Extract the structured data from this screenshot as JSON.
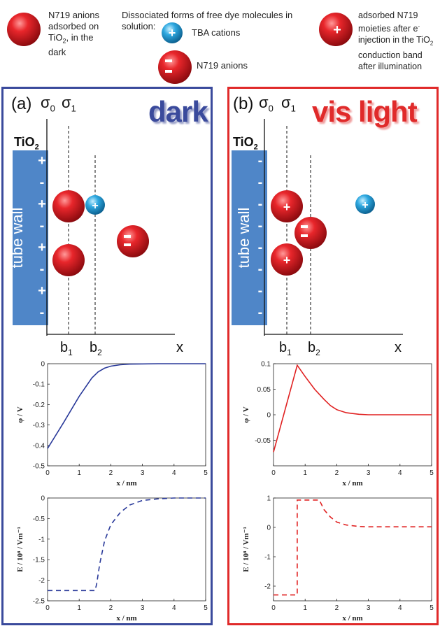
{
  "legend": {
    "adsorbed_dark": [
      "N719 anions",
      "adsorbed on",
      "TiO",
      "2",
      ", in the",
      "dark"
    ],
    "dissociated_title": [
      "Dissociated forms of free dye molecules in",
      "solution:"
    ],
    "tba_label": "TBA cations",
    "n719_label": "N719 anions",
    "adsorbed_light": [
      "adsorbed N719",
      "moieties after e",
      "-",
      "injection in the TiO",
      "2",
      "conduction band",
      "after illumination"
    ]
  },
  "panel_a": {
    "letter": "(a)",
    "title": "dark",
    "title_color": "#3a4a9c",
    "sigma0": "σ",
    "sigma0_sub": "0",
    "sigma1": "σ",
    "sigma1_sub": "1",
    "tio2": "TiO",
    "tio2_sub": "2",
    "wall_text": "tube wall",
    "wall_charges": [
      "+",
      "-",
      "+",
      "-",
      "+",
      "-",
      "+",
      "-"
    ],
    "b1": "b",
    "b1_sub": "1",
    "b2": "b",
    "b2_sub": "2",
    "x_label": "x"
  },
  "panel_b": {
    "letter": "(b)",
    "title": "vis light",
    "title_color": "#e02a2a",
    "sigma0": "σ",
    "sigma0_sub": "0",
    "sigma1": "σ",
    "sigma1_sub": "1",
    "tio2": "TiO",
    "tio2_sub": "2",
    "wall_text": "tube wall",
    "wall_charges": [
      "-",
      "-",
      "-",
      "-",
      "-",
      "-",
      "-",
      "-"
    ],
    "b1": "b",
    "b1_sub": "1",
    "b2": "b",
    "b2_sub": "2",
    "x_label": "x"
  },
  "colors": {
    "wall": "#4f86c8",
    "anion": "#d9141a",
    "cation": "#29a6de"
  },
  "chart_data": [
    {
      "type": "line",
      "id": "phi-dark",
      "xlabel": "x / nm",
      "ylabel": "φ / V",
      "xlim": [
        0,
        5
      ],
      "ylim": [
        -0.5,
        0
      ],
      "xticks": [
        0,
        1,
        2,
        3,
        4,
        5
      ],
      "yticks": [
        0,
        -0.1,
        -0.2,
        -0.3,
        -0.4,
        -0.5
      ],
      "ytick_labels": [
        "0",
        "-0.1",
        "-0.2",
        "-0.3",
        "-0.4",
        "-0.5"
      ],
      "series": [
        {
          "color": "#2a3a9a",
          "dash": false,
          "x": [
            0,
            0.5,
            1.0,
            1.4,
            1.6,
            1.8,
            2.0,
            2.3,
            2.6,
            3.0,
            3.5,
            4.0,
            5.0
          ],
          "values": [
            -0.415,
            -0.29,
            -0.16,
            -0.07,
            -0.04,
            -0.022,
            -0.012,
            -0.005,
            -0.002,
            -0.001,
            0,
            0,
            0
          ]
        }
      ]
    },
    {
      "type": "line",
      "id": "phi-light",
      "xlabel": "x / nm",
      "ylabel": "φ / V",
      "xlim": [
        0,
        5
      ],
      "ylim": [
        -0.1,
        0.1
      ],
      "xticks": [
        0,
        1,
        2,
        3,
        4,
        5
      ],
      "yticks": [
        0.1,
        0.05,
        0,
        -0.05
      ],
      "ytick_labels": [
        "0.1",
        "0.05",
        "0",
        "-0.05"
      ],
      "series": [
        {
          "color": "#e02020",
          "dash": false,
          "x": [
            0,
            0.75,
            1.0,
            1.3,
            1.6,
            1.8,
            2.0,
            2.3,
            2.7,
            3.0,
            4.0,
            5.0
          ],
          "values": [
            -0.073,
            0.097,
            0.075,
            0.05,
            0.03,
            0.018,
            0.01,
            0.004,
            0.001,
            0,
            0,
            0
          ]
        }
      ]
    },
    {
      "type": "line",
      "id": "e-dark",
      "xlabel": "x / nm",
      "ylabel": "E / 10⁸ / Vm⁻¹",
      "xlim": [
        0,
        5
      ],
      "ylim": [
        -2.5,
        0
      ],
      "xticks": [
        0,
        1,
        2,
        3,
        4,
        5
      ],
      "yticks": [
        0,
        -0.5,
        -1,
        -1.5,
        -2,
        -2.5
      ],
      "ytick_labels": [
        "0",
        "-0.5",
        "-1",
        "-1.5",
        "-2",
        "-2.5"
      ],
      "series": [
        {
          "color": "#2a3a9a",
          "dash": true,
          "x": [
            0,
            1.5,
            1.55,
            1.65,
            1.8,
            2.0,
            2.3,
            2.6,
            3.0,
            3.5,
            4.0,
            5.0
          ],
          "values": [
            -2.25,
            -2.25,
            -2.1,
            -1.6,
            -1.05,
            -0.65,
            -0.35,
            -0.17,
            -0.06,
            -0.02,
            0,
            0
          ]
        }
      ]
    },
    {
      "type": "line",
      "id": "e-light",
      "xlabel": "x / nm",
      "ylabel": "E / 10⁸ / Vm⁻¹",
      "xlim": [
        0,
        5
      ],
      "ylim": [
        -2.5,
        1
      ],
      "xticks": [
        0,
        1,
        2,
        3,
        4,
        5
      ],
      "yticks": [
        1,
        0,
        -1,
        -2
      ],
      "ytick_labels": [
        "1",
        "0",
        "-1",
        "-2"
      ],
      "series": [
        {
          "color": "#e02020",
          "dash": true,
          "x": [
            0,
            0.75,
            0.75,
            1.45,
            1.6,
            1.8,
            2.0,
            2.3,
            2.7,
            3.0,
            4.0,
            5.0
          ],
          "values": [
            -2.3,
            -2.3,
            0.93,
            0.93,
            0.6,
            0.35,
            0.18,
            0.08,
            0.03,
            0.02,
            0.02,
            0.02
          ]
        }
      ]
    }
  ]
}
